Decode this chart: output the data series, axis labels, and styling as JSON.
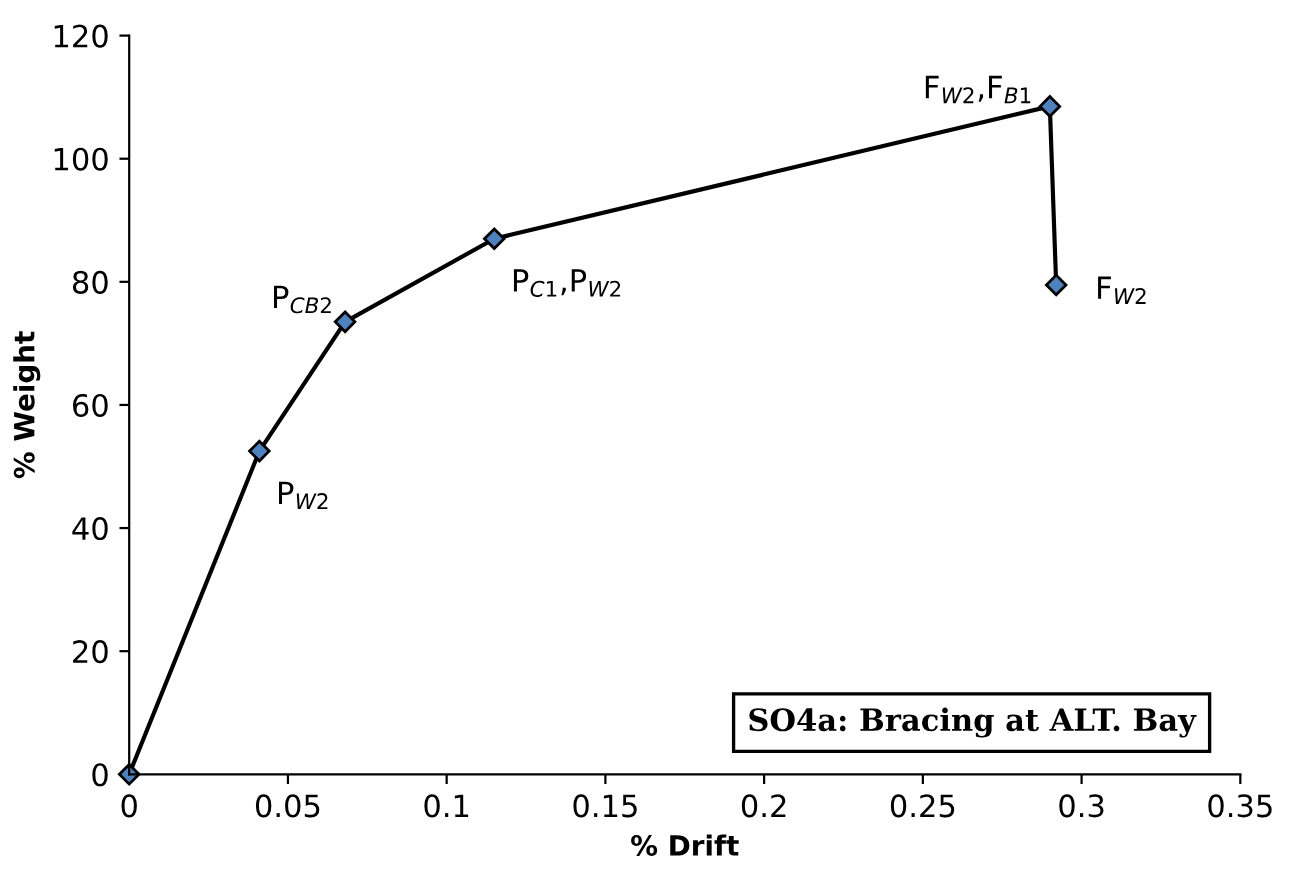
{
  "chart_data": {
    "type": "line",
    "xlabel": "% Drift",
    "ylabel": "% Weight",
    "x": [
      0,
      0.041,
      0.068,
      0.115,
      0.29,
      0.292
    ],
    "series": [
      {
        "color": "#000000",
        "values": [
          0,
          52.5,
          73.5,
          87,
          108.5,
          79.5
        ]
      }
    ],
    "marker": "diamond",
    "line_style": "solid",
    "grid": false,
    "legend": false,
    "xlim": [
      0,
      0.35
    ],
    "xticks": [
      0,
      0.05,
      0.1,
      0.15,
      0.2,
      0.25,
      0.3,
      0.35
    ],
    "ylim": [
      0,
      120
    ],
    "yticks": [
      0,
      20,
      40,
      60,
      80,
      100,
      120
    ],
    "annotations": [
      {
        "text": "P$_{W2}$",
        "x": 0.041,
        "y": 52.5
      },
      {
        "text": "P$_{CB2}$",
        "x": 0.068,
        "y": 73.5
      },
      {
        "text": "P$_{C1}$,P$_{W2}$",
        "x": 0.115,
        "y": 87
      },
      {
        "text": "F$_{W2}$,F$_{B1}$",
        "x": 0.29,
        "y": 108.5
      },
      {
        "text": "F$_{W2}$",
        "x": 0.292,
        "y": 79.5
      },
      "SO4a: Bracing at ALT. Bay"
    ]
  }
}
